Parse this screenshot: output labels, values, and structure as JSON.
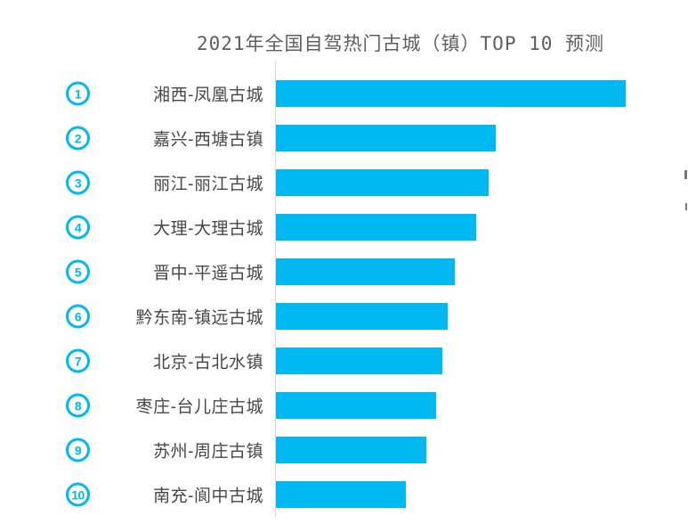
{
  "chart_data": {
    "type": "bar",
    "orientation": "horizontal",
    "title": "2021年全国自驾热门古城（镇）TOP 10 预测",
    "ranks": [
      "1",
      "2",
      "3",
      "4",
      "5",
      "6",
      "7",
      "8",
      "9",
      "10"
    ],
    "categories": [
      "湘西-凤凰古城",
      "嘉兴-西塘古镇",
      "丽江-丽江古城",
      "大理-大理古城",
      "晋中-平遥古城",
      "黔东南-镇远古城",
      "北京-古北水镇",
      "枣庄-台儿庄古城",
      "苏州-周庄古镇",
      "南充-阆中古城"
    ],
    "values_percent_of_max": [
      100,
      62.8,
      60.8,
      57.3,
      51.1,
      49.1,
      47.6,
      45.8,
      43.0,
      37.2
    ],
    "value_axis_ticks": "none shown",
    "xlabel": "",
    "ylabel": "",
    "legend_position": "none",
    "grid": false,
    "bar_color": "#00b9f0",
    "title_color": "#5e5e5e",
    "label_color": "#474747",
    "axis_line_color": "#d9d9d9"
  }
}
